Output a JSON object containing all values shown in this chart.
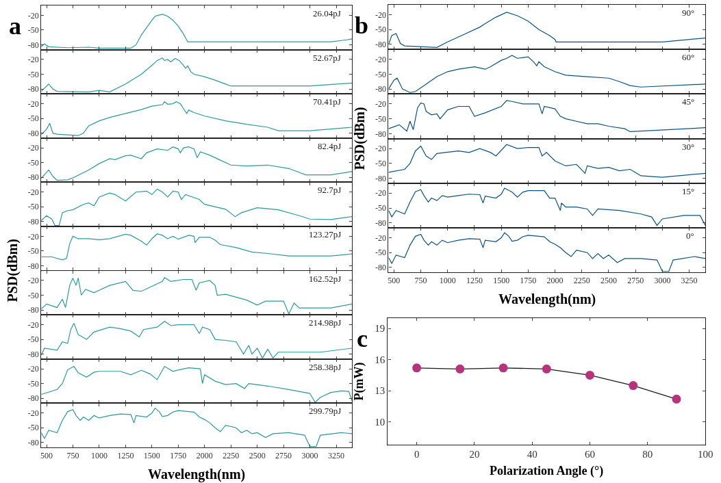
{
  "chart_data": [
    {
      "type": "line",
      "title": "a",
      "annotations": [
        "26.04pJ"
      ],
      "color": "#2a9aa0",
      "tick_labels": "y",
      "xlim": [
        450,
        3400
      ],
      "ylim": [
        -90,
        0
      ],
      "xticks": [
        500,
        750,
        1000,
        1250,
        1500,
        1750,
        2000,
        2250,
        2500,
        2750,
        3000,
        3250
      ],
      "yticks": [
        -80,
        -50,
        -20
      ],
      "x": [
        450,
        480,
        520,
        700,
        900,
        1000,
        1300,
        1350,
        1400,
        1450,
        1500,
        1530,
        1560,
        1600,
        1650,
        1700,
        1750,
        1800,
        1830,
        1840,
        2500,
        3000,
        3200,
        3350,
        3400
      ],
      "values": [
        -84,
        -78,
        -84,
        -86,
        -85,
        -87,
        -87,
        -80,
        -60,
        -45,
        -30,
        -22,
        -20,
        -18,
        -22,
        -30,
        -42,
        -58,
        -70,
        -74,
        -74,
        -74,
        -74,
        -70,
        -68
      ]
    },
    {
      "type": "line",
      "annotations": [
        "52.67pJ"
      ],
      "color": "#2a9aa0",
      "tick_labels": "y",
      "xlim": [
        450,
        3400
      ],
      "ylim": [
        -90,
        0
      ],
      "xticks": [
        500,
        750,
        1000,
        1250,
        1500,
        1750,
        2000,
        2250,
        2500,
        2750,
        3000,
        3250
      ],
      "yticks": [
        -80,
        -50,
        -20
      ],
      "x": [
        450,
        520,
        560,
        600,
        900,
        1000,
        1100,
        1250,
        1400,
        1500,
        1550,
        1600,
        1620,
        1650,
        1680,
        1720,
        1760,
        1800,
        1820,
        1840,
        1870,
        1900,
        2000,
        2100,
        2200,
        2250,
        3000,
        3400
      ],
      "values": [
        -85,
        -70,
        -80,
        -85,
        -86,
        -83,
        -86,
        -70,
        -50,
        -32,
        -22,
        -17,
        -22,
        -20,
        -25,
        -18,
        -22,
        -32,
        -38,
        -33,
        -45,
        -50,
        -55,
        -62,
        -70,
        -74,
        -74,
        -68
      ]
    },
    {
      "type": "line",
      "annotations": [
        "70.41pJ"
      ],
      "color": "#2a9aa0",
      "tick_labels": "y",
      "xlim": [
        450,
        3400
      ],
      "ylim": [
        -90,
        0
      ],
      "xticks": [
        500,
        750,
        1000,
        1250,
        1500,
        1750,
        2000,
        2250,
        2500,
        2750,
        3000,
        3250
      ],
      "yticks": [
        -80,
        -50,
        -20
      ],
      "x": [
        450,
        500,
        530,
        560,
        600,
        800,
        850,
        900,
        1000,
        1100,
        1250,
        1400,
        1500,
        1600,
        1620,
        1650,
        1700,
        1730,
        1770,
        1800,
        1830,
        1850,
        1900,
        2000,
        2200,
        2400,
        2600,
        2700,
        3000,
        3400
      ],
      "values": [
        -83,
        -72,
        -60,
        -80,
        -82,
        -85,
        -80,
        -65,
        -55,
        -48,
        -40,
        -32,
        -25,
        -22,
        -16,
        -21,
        -20,
        -16,
        -20,
        -30,
        -40,
        -33,
        -38,
        -45,
        -55,
        -62,
        -68,
        -75,
        -75,
        -68
      ]
    },
    {
      "type": "line",
      "annotations": [
        "82.4pJ"
      ],
      "color": "#2a9aa0",
      "tick_labels": "y",
      "xlim": [
        450,
        3400
      ],
      "ylim": [
        -90,
        0
      ],
      "xticks": [
        500,
        750,
        1000,
        1250,
        1500,
        1750,
        2000,
        2250,
        2500,
        2750,
        3000,
        3250
      ],
      "yticks": [
        -80,
        -50,
        -20
      ],
      "x": [
        450,
        520,
        560,
        600,
        700,
        760,
        900,
        1000,
        1100,
        1150,
        1250,
        1300,
        1400,
        1450,
        1550,
        1650,
        1700,
        1750,
        1770,
        1800,
        1850,
        1900,
        1930,
        1960,
        2050,
        2150,
        2250,
        2400,
        2600,
        2800,
        2900,
        2960,
        3200,
        3400
      ],
      "values": [
        -82,
        -65,
        -78,
        -86,
        -85,
        -80,
        -65,
        -52,
        -42,
        -44,
        -36,
        -35,
        -42,
        -30,
        -22,
        -25,
        -18,
        -22,
        -30,
        -20,
        -18,
        -22,
        -40,
        -28,
        -35,
        -45,
        -55,
        -57,
        -55,
        -62,
        -70,
        -75,
        -75,
        -68
      ]
    },
    {
      "type": "line",
      "annotations": [
        "92.7pJ"
      ],
      "color": "#2a9aa0",
      "tick_labels": "y",
      "xlim": [
        450,
        3400
      ],
      "ylim": [
        -90,
        0
      ],
      "xticks": [
        500,
        750,
        1000,
        1250,
        1500,
        1750,
        2000,
        2250,
        2500,
        2750,
        3000,
        3250
      ],
      "yticks": [
        -80,
        -50,
        -20
      ],
      "x": [
        450,
        500,
        550,
        580,
        620,
        650,
        700,
        750,
        850,
        900,
        950,
        1000,
        1100,
        1150,
        1250,
        1350,
        1450,
        1500,
        1550,
        1600,
        1650,
        1700,
        1750,
        1780,
        1820,
        1950,
        2000,
        2200,
        2290,
        2350,
        2500,
        2700,
        2900,
        3000,
        3200,
        3400
      ],
      "values": [
        -78,
        -68,
        -75,
        -88,
        -88,
        -62,
        -58,
        -56,
        -45,
        -42,
        -48,
        -30,
        -22,
        -25,
        -38,
        -20,
        -18,
        -25,
        -14,
        -20,
        -30,
        -18,
        -20,
        -35,
        -25,
        -35,
        -45,
        -55,
        -70,
        -62,
        -52,
        -56,
        -68,
        -75,
        -76,
        -70
      ]
    },
    {
      "type": "line",
      "annotations": [
        "123.27pJ"
      ],
      "ylabel": "PSD(dBm)",
      "color": "#2a9aa0",
      "tick_labels": "y",
      "xlim": [
        450,
        3400
      ],
      "ylim": [
        -90,
        0
      ],
      "xticks": [
        500,
        750,
        1000,
        1250,
        1500,
        1750,
        2000,
        2250,
        2500,
        2750,
        3000,
        3250
      ],
      "yticks": [
        -80,
        -50,
        -20
      ],
      "x": [
        450,
        550,
        650,
        690,
        720,
        750,
        800,
        900,
        1000,
        1100,
        1250,
        1300,
        1400,
        1450,
        1500,
        1550,
        1600,
        1650,
        1700,
        1750,
        1850,
        1900,
        1910,
        1950,
        2050,
        2100,
        2150,
        2300,
        2450,
        2600,
        2800,
        3000,
        3200,
        3400
      ],
      "values": [
        -62,
        -62,
        -68,
        -65,
        -35,
        -20,
        -25,
        -25,
        -27,
        -25,
        -16,
        -18,
        -30,
        -38,
        -25,
        -15,
        -18,
        -25,
        -20,
        -26,
        -18,
        -20,
        -33,
        -22,
        -22,
        -28,
        -37,
        -43,
        -52,
        -55,
        -60,
        -60,
        -60,
        -56
      ]
    },
    {
      "type": "line",
      "annotations": [
        "162.52pJ"
      ],
      "color": "#2a9aa0",
      "tick_labels": "y",
      "xlim": [
        450,
        3400
      ],
      "ylim": [
        -90,
        0
      ],
      "xticks": [
        500,
        750,
        1000,
        1250,
        1500,
        1750,
        2000,
        2250,
        2500,
        2750,
        3000,
        3250
      ],
      "yticks": [
        -80,
        -50,
        -20
      ],
      "x": [
        450,
        500,
        600,
        650,
        680,
        720,
        750,
        780,
        800,
        830,
        870,
        950,
        1000,
        1100,
        1250,
        1320,
        1400,
        1600,
        1620,
        1680,
        1800,
        1880,
        1920,
        1950,
        2050,
        2100,
        2120,
        2200,
        2400,
        2500,
        2580,
        2750,
        2800,
        2850,
        2900,
        3200,
        3400
      ],
      "values": [
        -78,
        -68,
        -75,
        -58,
        -75,
        -30,
        -15,
        -30,
        -15,
        -50,
        -38,
        -45,
        -40,
        -30,
        -22,
        -40,
        -42,
        -22,
        -14,
        -22,
        -18,
        -18,
        -40,
        -25,
        -20,
        -30,
        -50,
        -48,
        -60,
        -70,
        -62,
        -62,
        -88,
        -66,
        -76,
        -76,
        -68
      ]
    },
    {
      "type": "line",
      "annotations": [
        "214.98pJ"
      ],
      "color": "#2a9aa0",
      "tick_labels": "y",
      "xlim": [
        450,
        3400
      ],
      "ylim": [
        -90,
        0
      ],
      "xticks": [
        500,
        750,
        1000,
        1250,
        1500,
        1750,
        2000,
        2250,
        2500,
        2750,
        3000,
        3250
      ],
      "yticks": [
        -80,
        -50,
        -20
      ],
      "x": [
        450,
        480,
        600,
        650,
        700,
        730,
        760,
        800,
        880,
        950,
        1100,
        1200,
        1300,
        1380,
        1420,
        1550,
        1620,
        1680,
        1750,
        1900,
        1950,
        1980,
        2050,
        2100,
        2200,
        2300,
        2370,
        2420,
        2450,
        2500,
        2550,
        2600,
        2650,
        2700,
        3100,
        3400
      ],
      "values": [
        -82,
        -68,
        -72,
        -55,
        -58,
        -30,
        -17,
        -40,
        -50,
        -35,
        -25,
        -28,
        -33,
        -45,
        -30,
        -25,
        -13,
        -22,
        -20,
        -20,
        -38,
        -25,
        -30,
        -50,
        -52,
        -55,
        -80,
        -62,
        -80,
        -68,
        -88,
        -70,
        -88,
        -76,
        -76,
        -68
      ]
    },
    {
      "type": "line",
      "annotations": [
        "258.38pJ"
      ],
      "color": "#2a9aa0",
      "tick_labels": "y",
      "xlim": [
        450,
        3400
      ],
      "ylim": [
        -90,
        0
      ],
      "xticks": [
        500,
        750,
        1000,
        1250,
        1500,
        1750,
        2000,
        2250,
        2500,
        2750,
        3000,
        3250
      ],
      "yticks": [
        -80,
        -50,
        -20
      ],
      "x": [
        450,
        600,
        650,
        700,
        760,
        800,
        880,
        950,
        1000,
        1200,
        1300,
        1400,
        1480,
        1550,
        1620,
        1700,
        1800,
        1850,
        1960,
        1980,
        2000,
        2100,
        2200,
        2300,
        2380,
        2420,
        2600,
        2800,
        3000,
        3050,
        3100,
        3200,
        3300,
        3370,
        3400
      ],
      "values": [
        -72,
        -62,
        -50,
        -22,
        -15,
        -28,
        -37,
        -27,
        -25,
        -25,
        -32,
        -23,
        -30,
        -42,
        -15,
        -25,
        -20,
        -18,
        -20,
        -50,
        -32,
        -45,
        -52,
        -50,
        -60,
        -50,
        -55,
        -62,
        -70,
        -88,
        -78,
        -68,
        -65,
        -66,
        -85
      ]
    },
    {
      "type": "line",
      "annotations": [
        "299.79pJ"
      ],
      "xlabel": "Wavelength(nm)",
      "color": "#2a9aa0",
      "xlim": [
        450,
        3400
      ],
      "ylim": [
        -90,
        0
      ],
      "xticks": [
        500,
        750,
        1000,
        1250,
        1500,
        1750,
        2000,
        2250,
        2500,
        2750,
        3000,
        3250
      ],
      "yticks": [
        -80,
        -50,
        -20
      ],
      "x": [
        450,
        480,
        520,
        600,
        650,
        700,
        750,
        780,
        820,
        850,
        900,
        950,
        1000,
        1100,
        1200,
        1300,
        1330,
        1350,
        1450,
        1500,
        1530,
        1570,
        1600,
        1650,
        1700,
        1750,
        1850,
        1900,
        1950,
        2000,
        2050,
        2100,
        2150,
        2200,
        2300,
        2350,
        2400,
        2450,
        2500,
        2580,
        2650,
        2800,
        2950,
        3000,
        3060,
        3100,
        3300,
        3400
      ],
      "values": [
        -60,
        -72,
        -55,
        -60,
        -35,
        -17,
        -13,
        -25,
        -35,
        -28,
        -35,
        -25,
        -30,
        -25,
        -22,
        -23,
        -40,
        -25,
        -28,
        -20,
        -10,
        -17,
        -27,
        -25,
        -18,
        -15,
        -17,
        -18,
        -28,
        -33,
        -40,
        -50,
        -58,
        -45,
        -50,
        -60,
        -55,
        -62,
        -60,
        -70,
        -62,
        -60,
        -65,
        -88,
        -88,
        -65,
        -60,
        -62
      ]
    },
    {
      "type": "line",
      "title": "b",
      "annotations": [
        "90°"
      ],
      "color": "#0b5282",
      "tick_labels": "y",
      "xlim": [
        450,
        3400
      ],
      "ylim": [
        -90,
        0
      ],
      "xticks": [
        500,
        750,
        1000,
        1250,
        1500,
        1750,
        2000,
        2250,
        2500,
        2750,
        3000,
        3250
      ],
      "yticks": [
        -80,
        -50,
        -20
      ],
      "x": [
        450,
        480,
        520,
        560,
        600,
        800,
        900,
        1000,
        1150,
        1300,
        1350,
        1450,
        1550,
        1650,
        1750,
        1850,
        1950,
        2000,
        2010,
        3000,
        3400
      ],
      "values": [
        -80,
        -62,
        -58,
        -78,
        -83,
        -85,
        -86,
        -75,
        -60,
        -45,
        -38,
        -25,
        -15,
        -22,
        -33,
        -50,
        -62,
        -70,
        -75,
        -75,
        -67
      ]
    },
    {
      "type": "line",
      "annotations": [
        "60°"
      ],
      "color": "#0b5282",
      "tick_labels": "y",
      "xlim": [
        450,
        3400
      ],
      "ylim": [
        -90,
        0
      ],
      "xticks": [
        500,
        750,
        1000,
        1250,
        1500,
        1750,
        2000,
        2250,
        2500,
        2750,
        3000,
        3250
      ],
      "yticks": [
        -80,
        -50,
        -20
      ],
      "x": [
        450,
        500,
        530,
        580,
        650,
        700,
        800,
        900,
        1000,
        1100,
        1250,
        1350,
        1400,
        1500,
        1550,
        1600,
        1650,
        1750,
        1800,
        1830,
        1850,
        1900,
        2000,
        2100,
        2300,
        2500,
        2600,
        2700,
        2800,
        3400
      ],
      "values": [
        -80,
        -62,
        -58,
        -80,
        -87,
        -85,
        -70,
        -55,
        -45,
        -40,
        -35,
        -40,
        -35,
        -22,
        -18,
        -12,
        -18,
        -15,
        -25,
        -33,
        -25,
        -35,
        -45,
        -52,
        -55,
        -58,
        -65,
        -73,
        -76,
        -70
      ]
    },
    {
      "type": "line",
      "annotations": [
        "45°"
      ],
      "ylabel": "PSD(dBm)",
      "color": "#0b5282",
      "tick_labels": "y",
      "xlim": [
        450,
        3400
      ],
      "ylim": [
        -90,
        0
      ],
      "xticks": [
        500,
        750,
        1000,
        1250,
        1500,
        1750,
        2000,
        2250,
        2500,
        2750,
        3000,
        3250
      ],
      "yticks": [
        -80,
        -50,
        -20
      ],
      "x": [
        450,
        550,
        620,
        650,
        680,
        720,
        750,
        780,
        800,
        850,
        900,
        930,
        1000,
        1100,
        1200,
        1250,
        1350,
        1500,
        1550,
        1600,
        1700,
        1850,
        1880,
        1900,
        2000,
        2050,
        2100,
        2200,
        2300,
        2400,
        2500,
        2650,
        2700,
        3400
      ],
      "values": [
        -70,
        -62,
        -75,
        -55,
        -72,
        -28,
        -18,
        -20,
        -35,
        -42,
        -40,
        -50,
        -32,
        -25,
        -25,
        -45,
        -38,
        -25,
        -13,
        -15,
        -20,
        -20,
        -40,
        -25,
        -30,
        -45,
        -50,
        -55,
        -60,
        -60,
        -65,
        -70,
        -76,
        -68
      ]
    },
    {
      "type": "line",
      "annotations": [
        "30°"
      ],
      "color": "#0b5282",
      "tick_labels": "y",
      "xlim": [
        450,
        3400
      ],
      "ylim": [
        -90,
        0
      ],
      "xticks": [
        500,
        750,
        1000,
        1250,
        1500,
        1750,
        2000,
        2250,
        2500,
        2750,
        3000,
        3250
      ],
      "yticks": [
        -80,
        -50,
        -20
      ],
      "x": [
        450,
        600,
        650,
        700,
        750,
        800,
        850,
        900,
        1100,
        1200,
        1300,
        1400,
        1450,
        1550,
        1650,
        1750,
        1850,
        1880,
        1920,
        2000,
        2100,
        2200,
        2280,
        2300,
        2400,
        2500,
        2600,
        2700,
        2800,
        3000,
        3100,
        3400
      ],
      "values": [
        -68,
        -62,
        -50,
        -25,
        -15,
        -35,
        -42,
        -30,
        -25,
        -28,
        -20,
        -28,
        -35,
        -12,
        -20,
        -18,
        -18,
        -35,
        -28,
        -45,
        -55,
        -52,
        -70,
        -55,
        -60,
        -58,
        -65,
        -62,
        -75,
        -78,
        -76,
        -70
      ]
    },
    {
      "type": "line",
      "annotations": [
        "15°"
      ],
      "color": "#0b5282",
      "tick_labels": "y",
      "xlim": [
        450,
        3400
      ],
      "ylim": [
        -90,
        0
      ],
      "xticks": [
        500,
        750,
        1000,
        1250,
        1500,
        1750,
        2000,
        2250,
        2500,
        2750,
        3000,
        3250
      ],
      "yticks": [
        -80,
        -50,
        -20
      ],
      "x": [
        450,
        480,
        520,
        600,
        650,
        700,
        750,
        780,
        820,
        850,
        900,
        950,
        1000,
        1100,
        1200,
        1300,
        1330,
        1350,
        1450,
        1500,
        1530,
        1600,
        1650,
        1700,
        1750,
        1900,
        1950,
        2000,
        2050,
        2060,
        2100,
        2200,
        2300,
        2350,
        2400,
        2600,
        2800,
        2900,
        2950,
        3000,
        3200,
        3350,
        3400
      ],
      "values": [
        -55,
        -68,
        -55,
        -62,
        -38,
        -17,
        -13,
        -25,
        -38,
        -30,
        -35,
        -25,
        -28,
        -25,
        -22,
        -23,
        -40,
        -26,
        -30,
        -22,
        -10,
        -18,
        -28,
        -18,
        -15,
        -15,
        -30,
        -30,
        -55,
        -40,
        -48,
        -48,
        -52,
        -65,
        -52,
        -55,
        -62,
        -68,
        -85,
        -72,
        -65,
        -65,
        -85
      ]
    },
    {
      "type": "line",
      "annotations": [
        "0°"
      ],
      "xlabel": "Wavelength(nm)",
      "color": "#0b5282",
      "xlim": [
        450,
        3400
      ],
      "ylim": [
        -90,
        0
      ],
      "xticks": [
        500,
        750,
        1000,
        1250,
        1500,
        1750,
        2000,
        2250,
        2500,
        2750,
        3000,
        3250
      ],
      "yticks": [
        -80,
        -50,
        -20
      ],
      "x": [
        450,
        480,
        520,
        600,
        650,
        700,
        750,
        780,
        820,
        850,
        900,
        950,
        1000,
        1100,
        1200,
        1300,
        1330,
        1350,
        1450,
        1500,
        1530,
        1570,
        1600,
        1650,
        1700,
        1750,
        1850,
        1900,
        1950,
        2000,
        2050,
        2100,
        2150,
        2200,
        2300,
        2350,
        2400,
        2450,
        2500,
        2580,
        2650,
        2800,
        2950,
        3000,
        3060,
        3100,
        3300,
        3400
      ],
      "values": [
        -60,
        -72,
        -55,
        -60,
        -35,
        -17,
        -13,
        -25,
        -35,
        -28,
        -35,
        -25,
        -30,
        -25,
        -22,
        -23,
        -40,
        -25,
        -28,
        -20,
        -10,
        -17,
        -27,
        -25,
        -18,
        -15,
        -17,
        -18,
        -28,
        -33,
        -40,
        -50,
        -58,
        -45,
        -50,
        -62,
        -52,
        -62,
        -55,
        -70,
        -62,
        -62,
        -65,
        -88,
        -88,
        -65,
        -58,
        -62
      ]
    },
    {
      "type": "line",
      "title": "c",
      "xlabel": "Polarization Angle (°)",
      "ylabel": "P(mW)",
      "color": "#b5347c",
      "marker": "circle",
      "xlim": [
        -10,
        100
      ],
      "ylim": [
        7.8,
        20
      ],
      "xticks": [
        0,
        20,
        40,
        60,
        80,
        100
      ],
      "yticks": [
        10,
        13,
        16,
        19
      ],
      "x": [
        0,
        15,
        30,
        45,
        60,
        75,
        90
      ],
      "values": [
        15.2,
        15.1,
        15.2,
        15.1,
        14.5,
        13.5,
        12.2
      ]
    }
  ]
}
